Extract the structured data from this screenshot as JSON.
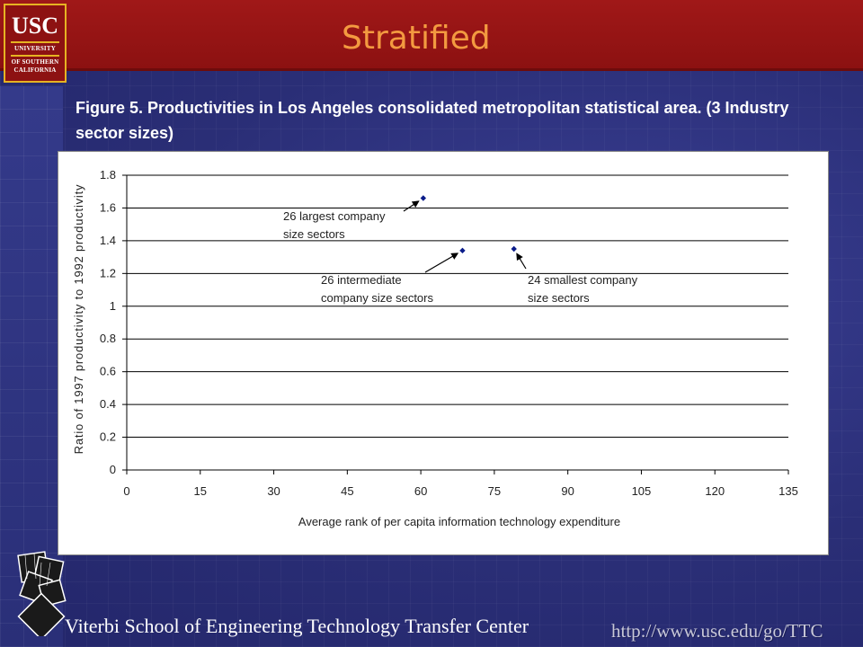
{
  "slide": {
    "title": "Stratified",
    "caption": "Figure 5. Productivities in Los Angeles consolidated metropolitan statistical area.  (3 Industry sector sizes)"
  },
  "logo": {
    "big": "USC",
    "line1": "UNIVERSITY",
    "line2": "OF SOUTHERN",
    "line3": "CALIFORNIA"
  },
  "footer": {
    "org": "Viterbi School of Engineering Technology Transfer Center",
    "url": "http://www.usc.edu/go/TTC"
  },
  "colors": {
    "header": "#8c1111",
    "title": "#f39a40",
    "marker": "#0b1c8a",
    "background": "#2b2f78"
  },
  "chart_data": {
    "type": "scatter",
    "xlabel": "Average rank of per capita information technology expenditure",
    "ylabel": "Ratio of 1997 productivity to 1992 productivity",
    "xlim": [
      0,
      135
    ],
    "ylim": [
      0,
      1.8
    ],
    "xticks": [
      "0",
      "15",
      "30",
      "45",
      "60",
      "75",
      "90",
      "105",
      "120",
      "135"
    ],
    "yticks": [
      "0",
      "0.2",
      "0.4",
      "0.6",
      "0.8",
      "1",
      "1.2",
      "1.4",
      "1.6",
      "1.8"
    ],
    "grid": "horizontal",
    "points": [
      {
        "x": 60.5,
        "y": 1.66
      },
      {
        "x": 68.5,
        "y": 1.34
      },
      {
        "x": 79,
        "y": 1.35
      }
    ],
    "annotations": [
      {
        "line1": "26 largest company",
        "line2": "size sectors"
      },
      {
        "line1": "26 intermediate",
        "line2": "company size sectors"
      },
      {
        "line1": "24 smallest company",
        "line2": "size sectors"
      }
    ]
  }
}
